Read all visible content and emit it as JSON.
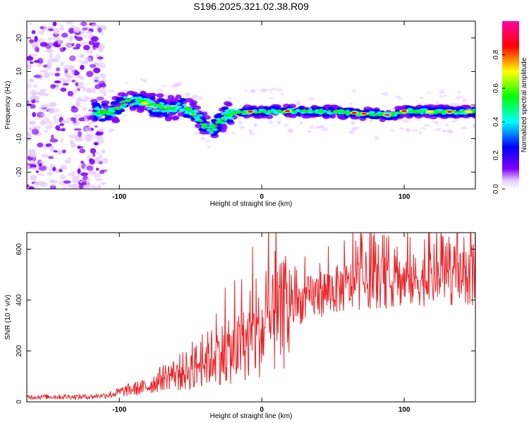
{
  "title": "S196.2025.321.02.38.R09",
  "colors": {
    "snr_line": "#e8262a",
    "axis": "#000000",
    "colorbar": [
      "#ffffff",
      "#e6ccff",
      "#7f00ff",
      "#0000ff",
      "#00ffff",
      "#00ff00",
      "#ffff00",
      "#ff0000",
      "#ff00aa"
    ]
  },
  "chart_data": [
    {
      "type": "heatmap",
      "title": "S196.2025.321.02.38.R09",
      "xlabel": "Height of straight line (km)",
      "ylabel": "Frequency (Hz)",
      "xlim": [
        -165,
        150
      ],
      "ylim": [
        -25,
        25
      ],
      "xticks": [
        -100,
        0,
        100
      ],
      "xtick_labels": [
        "-100",
        "0",
        "100"
      ],
      "yticks": [
        -20,
        -10,
        0,
        10,
        20
      ],
      "ytick_labels": [
        "-20",
        "-10",
        "0",
        "10",
        "20"
      ],
      "colorbar": {
        "label": "Normalized spectral amplitude",
        "range": [
          0,
          1
        ],
        "ticks": [
          0,
          0.2,
          0.4,
          0.6,
          0.8
        ],
        "tick_labels": [
          "0.0",
          "0.2",
          "0.4",
          "0.6",
          "0.8"
        ]
      },
      "ridge": [
        {
          "x": -115,
          "y": -2.0
        },
        {
          "x": -105,
          "y": -2.2
        },
        {
          "x": -95,
          "y": 1.5
        },
        {
          "x": -85,
          "y": 1.0
        },
        {
          "x": -75,
          "y": -0.5
        },
        {
          "x": -65,
          "y": -0.8
        },
        {
          "x": -55,
          "y": -0.5
        },
        {
          "x": -45,
          "y": -3.5
        },
        {
          "x": -40,
          "y": -6.0
        },
        {
          "x": -35,
          "y": -7.0
        },
        {
          "x": -30,
          "y": -5.0
        },
        {
          "x": -25,
          "y": -3.0
        },
        {
          "x": -15,
          "y": -2.0
        },
        {
          "x": 0,
          "y": -2.0
        },
        {
          "x": 20,
          "y": -1.8
        },
        {
          "x": 50,
          "y": -2.0
        },
        {
          "x": 70,
          "y": -2.5
        },
        {
          "x": 90,
          "y": -3.0
        },
        {
          "x": 100,
          "y": -1.8
        },
        {
          "x": 120,
          "y": -2.0
        },
        {
          "x": 150,
          "y": -2.0
        }
      ]
    },
    {
      "type": "line",
      "xlabel": "Height of straight line (km)",
      "ylabel": "SNR (10 * v/v)",
      "xlim": [
        -165,
        150
      ],
      "ylim": [
        0,
        665
      ],
      "xticks": [
        -100,
        0,
        100
      ],
      "xtick_labels": [
        "-100",
        "0",
        "100"
      ],
      "yticks": [
        0,
        200,
        400,
        600
      ],
      "ytick_labels": [
        "0",
        "200",
        "400",
        "600"
      ],
      "series": [
        {
          "name": "SNR",
          "trend": [
            {
              "x": -165,
              "y": 20
            },
            {
              "x": -120,
              "y": 20
            },
            {
              "x": -105,
              "y": 30
            },
            {
              "x": -95,
              "y": 45
            },
            {
              "x": -80,
              "y": 60
            },
            {
              "x": -70,
              "y": 95
            },
            {
              "x": -60,
              "y": 115
            },
            {
              "x": -50,
              "y": 125
            },
            {
              "x": -40,
              "y": 165
            },
            {
              "x": -30,
              "y": 190
            },
            {
              "x": -20,
              "y": 195
            },
            {
              "x": -10,
              "y": 235
            },
            {
              "x": 0,
              "y": 270
            },
            {
              "x": 10,
              "y": 315
            },
            {
              "x": 20,
              "y": 365
            },
            {
              "x": 30,
              "y": 400
            },
            {
              "x": 40,
              "y": 425
            },
            {
              "x": 55,
              "y": 445
            },
            {
              "x": 70,
              "y": 465
            },
            {
              "x": 90,
              "y": 470
            },
            {
              "x": 110,
              "y": 480
            },
            {
              "x": 130,
              "y": 480
            },
            {
              "x": 150,
              "y": 485
            }
          ]
        }
      ]
    }
  ]
}
